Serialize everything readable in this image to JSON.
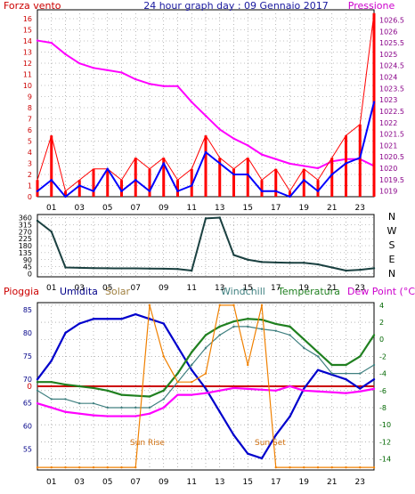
{
  "title": "24 hour graph day : 09 Gennaio 2017",
  "colors": {
    "wind": "#ff0000",
    "gust": "#0000ff",
    "pressure": "#ff00ff",
    "winddir": "#1a4040",
    "humidity": "#0000cc",
    "solar": "#f08000",
    "windchill": "#408080",
    "temperature": "#208020",
    "dewpoint": "#ff00ff",
    "rain": "#cc0000",
    "left_axis": "#cc0000",
    "right_axis": "#880088",
    "humidity_axis": "#000088",
    "temp_axis": "#006600",
    "dir_axis": "#000000",
    "grid": "#888888"
  },
  "hour_labels": [
    "01",
    "03",
    "05",
    "07",
    "09",
    "11",
    "13",
    "15",
    "17",
    "19",
    "21",
    "23"
  ],
  "chart_data": [
    {
      "type": "line",
      "name": "wind-pressure",
      "left_label": "Forza vento",
      "right_label": "Pressione",
      "left_ticks": [
        "0",
        "1",
        "2",
        "3",
        "4",
        "5",
        "6",
        "7",
        "8",
        "9",
        "10",
        "11",
        "12",
        "13",
        "14",
        "15",
        "16"
      ],
      "right_ticks": [
        "1019",
        "1019.5",
        "1020",
        "1020.5",
        "1021",
        "1021.5",
        "1022",
        "1022.5",
        "1023",
        "1023.5",
        "1024",
        "1024.5",
        "1025",
        "1025.5",
        "1026",
        "1026.5"
      ],
      "ylim_left": [
        0,
        16.8
      ],
      "ylim_right": [
        1018.75,
        1026.95
      ],
      "x": [
        0,
        1,
        2,
        3,
        4,
        5,
        6,
        7,
        8,
        9,
        10,
        11,
        12,
        13,
        14,
        15,
        16,
        17,
        18,
        19,
        20,
        21,
        22,
        23,
        24
      ],
      "series": [
        {
          "key": "pressure",
          "axis": "right",
          "values": [
            1025.6,
            1025.5,
            1025.0,
            1024.6,
            1024.4,
            1024.3,
            1024.2,
            1023.9,
            1023.7,
            1023.6,
            1023.6,
            1022.9,
            1022.3,
            1021.7,
            1021.3,
            1021.0,
            1020.6,
            1020.4,
            1020.2,
            1020.1,
            1020.0,
            1020.3,
            1020.4,
            1020.4,
            1020.1
          ]
        },
        {
          "key": "wind",
          "axis": "left",
          "values": [
            1.5,
            5.5,
            0.5,
            1.5,
            2.5,
            2.5,
            1.5,
            3.5,
            2.5,
            3.5,
            1.5,
            2.5,
            5.5,
            3.5,
            2.5,
            3.5,
            1.5,
            2.5,
            0.5,
            2.5,
            1.5,
            3.5,
            5.5,
            6.5,
            16.5
          ]
        },
        {
          "key": "gust",
          "axis": "left",
          "values": [
            0.5,
            1.5,
            0,
            1,
            0.5,
            2.5,
            0.5,
            1.5,
            0.5,
            3,
            0.5,
            1,
            4,
            3,
            2,
            2,
            0.5,
            0.5,
            0,
            1.5,
            0.5,
            2,
            3,
            3.5,
            8.5
          ]
        }
      ]
    },
    {
      "type": "line",
      "name": "wind-direction",
      "y_ticks": [
        "0",
        "45",
        "90",
        "135",
        "180",
        "225",
        "270",
        "315",
        "360"
      ],
      "compass": [
        "N",
        "W",
        "S",
        "E",
        "N"
      ],
      "ylim": [
        -20,
        380
      ],
      "x": [
        0,
        1,
        2,
        3,
        4,
        5,
        6,
        7,
        8,
        9,
        10,
        11,
        12,
        13,
        14,
        15,
        16,
        17,
        18,
        19,
        20,
        21,
        22,
        23,
        24
      ],
      "series": [
        {
          "key": "winddir",
          "values": [
            340,
            270,
            40,
            38,
            36,
            35,
            34,
            34,
            33,
            32,
            30,
            20,
            355,
            360,
            120,
            90,
            75,
            72,
            70,
            70,
            60,
            40,
            20,
            25,
            35
          ]
        }
      ]
    },
    {
      "type": "line",
      "name": "humidity-temperature",
      "labels": {
        "rain": "Pioggia",
        "humidity": "Umidita",
        "solar": "Solar",
        "windchill": "Windchill",
        "temperature": "Temperatura",
        "dewpoint": "Dew Point (°C)"
      },
      "annotations": [
        "Sun Rise",
        "Sun Set"
      ],
      "rain_value": "0",
      "humidity_ticks": [
        "55",
        "60",
        "65",
        "70",
        "75",
        "80",
        "85"
      ],
      "temp_ticks": [
        "4",
        "2",
        "0",
        "-2",
        "-4",
        "-6",
        "-8",
        "-10",
        "-12",
        "-14"
      ],
      "ylim_humidity": [
        50.5,
        86.5
      ],
      "ylim_temp": [
        -15.3,
        4.3
      ],
      "x": [
        0,
        1,
        2,
        3,
        4,
        5,
        6,
        7,
        8,
        9,
        10,
        11,
        12,
        13,
        14,
        15,
        16,
        17,
        18,
        19,
        20,
        21,
        22,
        23,
        24
      ],
      "series": [
        {
          "key": "humidity",
          "axis": "left",
          "values": [
            70,
            74,
            80,
            82,
            83,
            83,
            83,
            84,
            83,
            82,
            77,
            72,
            68,
            63,
            58,
            54,
            53,
            58,
            62,
            68,
            72,
            71,
            70,
            68,
            70
          ]
        },
        {
          "key": "temperature",
          "axis": "right",
          "values": [
            -5,
            -5,
            -5.3,
            -5.5,
            -5.7,
            -6,
            -6.5,
            -6.6,
            -6.7,
            -6,
            -4,
            -1.5,
            0.5,
            1.5,
            2.1,
            2.4,
            2.3,
            1.8,
            1.5,
            0,
            -1.5,
            -3,
            -3,
            -2,
            0.5
          ]
        },
        {
          "key": "dewpoint",
          "axis": "right",
          "values": [
            -7.5,
            -8,
            -8.5,
            -8.7,
            -8.9,
            -9,
            -9,
            -9,
            -8.7,
            -8,
            -6.5,
            -6.5,
            -6.3,
            -6,
            -5.7,
            -5.8,
            -5.9,
            -6,
            -5.5,
            -6,
            -6.1,
            -6.2,
            -6.3,
            -6.1,
            -5.8
          ]
        },
        {
          "key": "windchill",
          "axis": "right",
          "values": [
            -6,
            -7,
            -7,
            -7.5,
            -7.5,
            -8,
            -8,
            -8,
            -8,
            -7,
            -5,
            -3,
            -1,
            0.5,
            1.5,
            1.5,
            1.2,
            1,
            0.5,
            -1,
            -2,
            -4,
            -4,
            -4,
            -3
          ]
        },
        {
          "key": "solar",
          "axis": "right",
          "values": [
            -15,
            -15,
            -15,
            -15,
            -15,
            -15,
            -15,
            -15,
            4,
            -2,
            -5,
            -5,
            -4,
            4,
            4,
            -3,
            4,
            -15,
            -15,
            -15,
            -15,
            -15,
            -15,
            -15,
            -15
          ]
        }
      ]
    }
  ]
}
